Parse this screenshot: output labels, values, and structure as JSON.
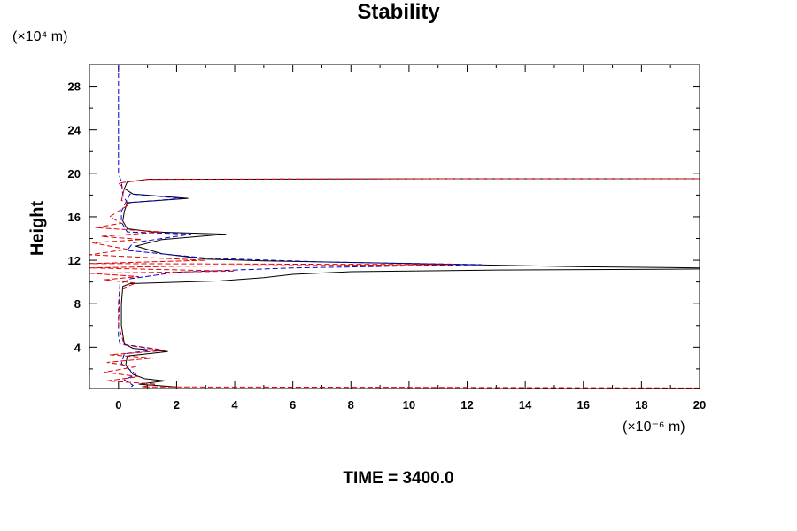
{
  "chart_data": {
    "type": "line",
    "title": "Stability",
    "ylabel": "Height",
    "y_unit_label": "(×10⁴ m)",
    "x_unit_label": "(×10⁻⁶ m)",
    "xlim": [
      -1,
      20
    ],
    "ylim": [
      0.2,
      30
    ],
    "x_ticks": [
      0,
      2,
      4,
      6,
      8,
      10,
      12,
      14,
      16,
      18,
      20
    ],
    "y_ticks": [
      4,
      8,
      12,
      16,
      20,
      24,
      28
    ],
    "grid": false,
    "series": [
      {
        "color": "#000000",
        "style": "solid",
        "points": [
          [
            2,
            0.35
          ],
          [
            0.7,
            0.6
          ],
          [
            1.6,
            0.9
          ],
          [
            0.9,
            1.1
          ],
          [
            0.5,
            1.5
          ],
          [
            0.25,
            2.4
          ],
          [
            0.3,
            3.2
          ],
          [
            1.7,
            3.6
          ],
          [
            0.5,
            3.9
          ],
          [
            0.2,
            4.3
          ],
          [
            0.1,
            6
          ],
          [
            0.1,
            8
          ],
          [
            0.15,
            9.6
          ],
          [
            0.4,
            9.85
          ],
          [
            3.5,
            10.1
          ],
          [
            5,
            10.4
          ],
          [
            6,
            10.7
          ],
          [
            8,
            10.95
          ],
          [
            13,
            11.1
          ],
          [
            17,
            11.15
          ],
          [
            20,
            11.2
          ],
          [
            20,
            11.3
          ],
          [
            16,
            11.4
          ],
          [
            12,
            11.6
          ],
          [
            8,
            11.8
          ],
          [
            5,
            11.95
          ],
          [
            3,
            12.1
          ],
          [
            1.5,
            12.6
          ],
          [
            0.6,
            13.3
          ],
          [
            1.5,
            13.9
          ],
          [
            3.7,
            14.4
          ],
          [
            1.2,
            14.6
          ],
          [
            0.3,
            14.9
          ],
          [
            0.15,
            15.6
          ],
          [
            0.2,
            16.5
          ],
          [
            0.3,
            17.3
          ],
          [
            2.4,
            17.7
          ],
          [
            0.5,
            18.1
          ],
          [
            0.2,
            18.6
          ],
          [
            0.3,
            19.2
          ],
          [
            1,
            19.45
          ],
          [
            11,
            19.5
          ],
          [
            20,
            19.5
          ]
        ]
      },
      {
        "color": "#0000cc",
        "style": "dashed",
        "points": [
          [
            0,
            30
          ],
          [
            0,
            25
          ],
          [
            0,
            20
          ],
          [
            0.1,
            19.2
          ],
          [
            0.15,
            18
          ],
          [
            0.3,
            17.3
          ],
          [
            2.2,
            17.7
          ],
          [
            0.4,
            18.1
          ],
          [
            0.1,
            16.5
          ],
          [
            0.1,
            15.5
          ],
          [
            0.3,
            14.6
          ],
          [
            2.5,
            14.4
          ],
          [
            0.5,
            13.6
          ],
          [
            0.3,
            12.9
          ],
          [
            3,
            12.2
          ],
          [
            7,
            11.85
          ],
          [
            12.5,
            11.6
          ],
          [
            6,
            11.3
          ],
          [
            2,
            10.9
          ],
          [
            0.4,
            10.3
          ],
          [
            0.05,
            9.8
          ],
          [
            0,
            8
          ],
          [
            0,
            5
          ],
          [
            0.05,
            4.3
          ],
          [
            1.4,
            3.8
          ],
          [
            0.2,
            3.4
          ],
          [
            0.1,
            2.5
          ],
          [
            0.6,
            1.5
          ],
          [
            0.2,
            1.0
          ],
          [
            0.5,
            0.5
          ],
          [
            0.4,
            0.25
          ]
        ]
      },
      {
        "color": "#dd0000",
        "style": "dashed",
        "points": [
          [
            20,
            19.5
          ],
          [
            10,
            19.5
          ],
          [
            1,
            19.45
          ],
          [
            0,
            19.1
          ],
          [
            0.2,
            18.6
          ],
          [
            0.1,
            17.5
          ],
          [
            0.4,
            17.2
          ],
          [
            -0.3,
            16.0
          ],
          [
            0.1,
            15.4
          ],
          [
            -0.8,
            15.0
          ],
          [
            1.5,
            14.6
          ],
          [
            -0.6,
            14.2
          ],
          [
            0.8,
            13.9
          ],
          [
            -0.9,
            13.6
          ],
          [
            0.3,
            13.0
          ],
          [
            -1,
            12.5
          ],
          [
            3,
            12.0
          ],
          [
            -1,
            11.7
          ],
          [
            11.5,
            11.6
          ],
          [
            2,
            11.45
          ],
          [
            -1,
            11.3
          ],
          [
            4,
            11.0
          ],
          [
            -1,
            10.8
          ],
          [
            0.7,
            10.5
          ],
          [
            -0.5,
            10.2
          ],
          [
            0.6,
            9.9
          ],
          [
            0.05,
            9.3
          ],
          [
            0,
            6
          ],
          [
            0.2,
            4.2
          ],
          [
            1.6,
            3.7
          ],
          [
            -0.3,
            3.3
          ],
          [
            1.2,
            3.0
          ],
          [
            -0.4,
            2.6
          ],
          [
            0.6,
            2.2
          ],
          [
            -0.5,
            1.7
          ],
          [
            0.7,
            1.3
          ],
          [
            -0.4,
            0.9
          ],
          [
            1.3,
            0.6
          ],
          [
            0.8,
            0.35
          ],
          [
            12,
            0.3
          ],
          [
            20,
            0.25
          ]
        ]
      }
    ]
  },
  "footer": {
    "time_label": "TIME = 3400.0"
  }
}
